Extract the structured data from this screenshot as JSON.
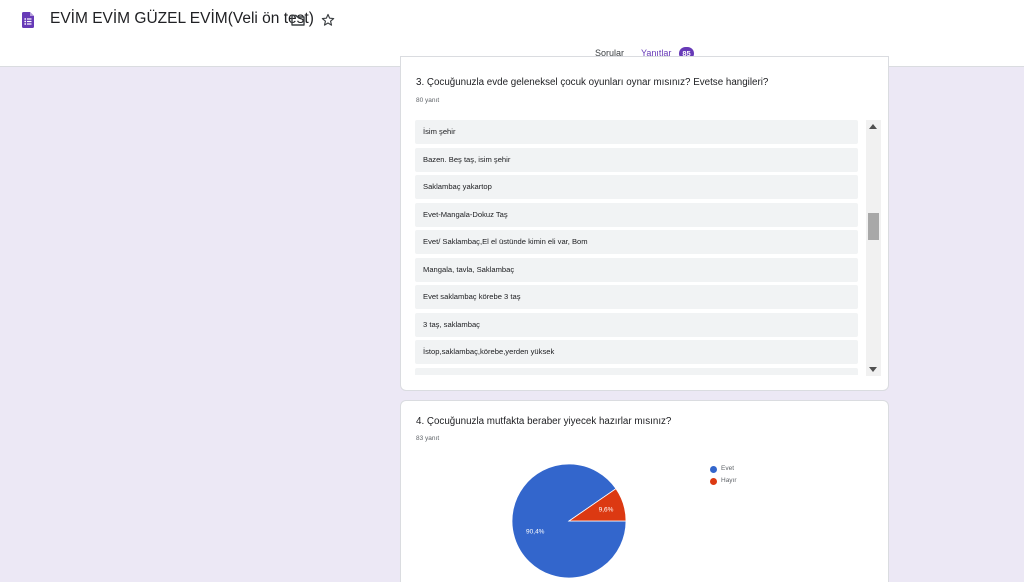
{
  "app": {
    "title": "EVİM EVİM GÜZEL EVİM(Veli ön test)",
    "icons": {
      "logo": "google-forms-icon",
      "folder": "folder-icon",
      "star": "star-outline-icon"
    },
    "accent_color": "#673ab7"
  },
  "tabs": {
    "questions": "Sorular",
    "responses": "Yanıtlar",
    "responses_count": "85"
  },
  "question3": {
    "title": "3. Çocuğunuzla evde geleneksel çocuk oyunları oynar mısınız? Evetse hangileri?",
    "count": "80 yanıt",
    "responses": [
      "İsim şehir",
      "Bazen. Beş taş, isim şehir",
      "Saklambaç yakartop",
      "Evet-Mangala-Dokuz Taş",
      "Evet/ Saklambaç,El el üstünde kimin eli var, Bom",
      "Mangala, tavla, Saklambaç",
      "Evet saklambaç körebe 3 taş",
      "3 taş, saklambaç",
      "İstop,saklambaç,körebe,yerden yüksek"
    ]
  },
  "question4": {
    "title": "4. Çocuğunuzla mutfakta beraber yiyecek hazırlar mısınız?",
    "count": "83 yanıt"
  },
  "chart_data": {
    "type": "pie",
    "title": "4. Çocuğunuzla mutfakta beraber yiyecek hazırlar mısınız?",
    "categories": [
      "Evet",
      "Hayır"
    ],
    "values": [
      90.4,
      9.6
    ],
    "labels": [
      "90,4%",
      "9,6%"
    ],
    "colors": [
      "#3366cc",
      "#dc3912"
    ],
    "legend": "right"
  }
}
